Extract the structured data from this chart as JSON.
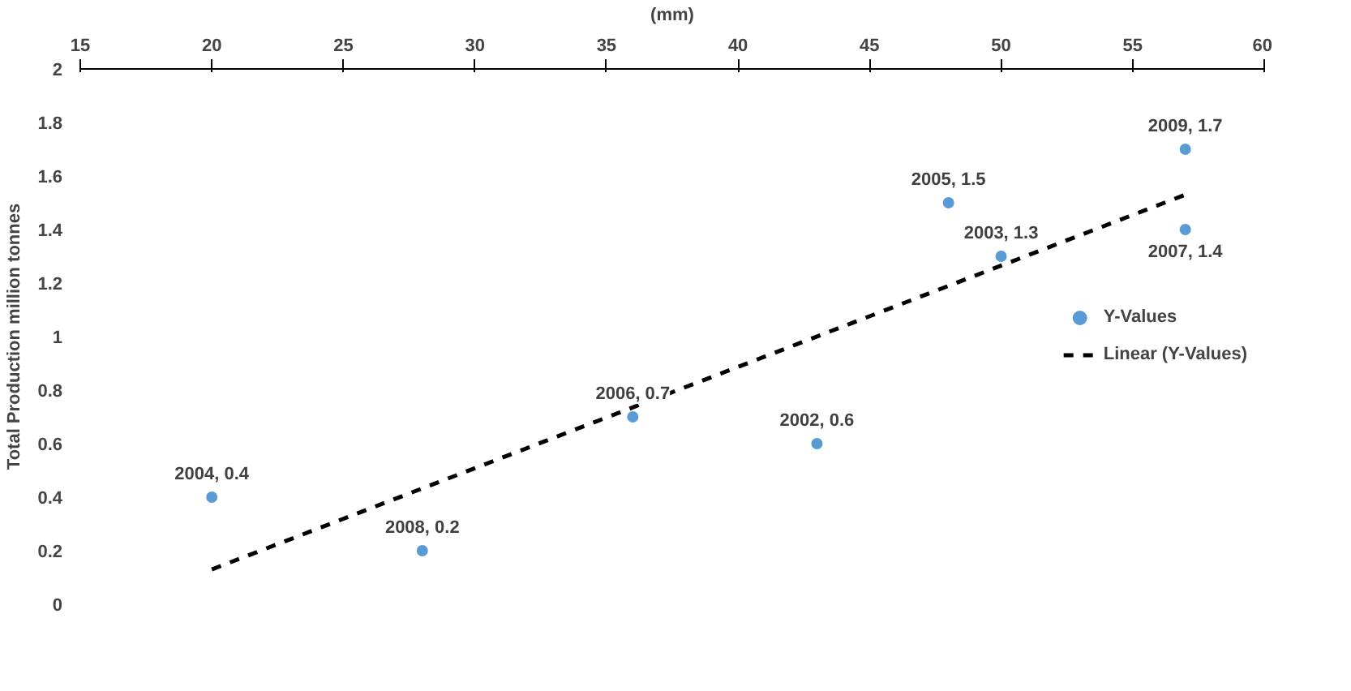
{
  "chart_data": {
    "type": "scatter",
    "xlabel": "(mm)",
    "ylabel": "Total Production million tonnes",
    "xlim": [
      15,
      60
    ],
    "xticks": [
      15,
      20,
      25,
      30,
      35,
      40,
      45,
      50,
      55,
      60
    ],
    "ylim": [
      0,
      2
    ],
    "yticks": [
      0,
      0.2,
      0.4,
      0.6,
      0.8,
      1,
      1.2,
      1.4,
      1.6,
      1.8,
      2
    ],
    "grid": false,
    "legend": "right",
    "series": [
      {
        "name": "Y-Values",
        "marker": "circle",
        "color": "#5b9bd5",
        "x": [
          20,
          28,
          36,
          43,
          48,
          50,
          57,
          57
        ],
        "values": [
          0.4,
          0.2,
          0.7,
          0.6,
          1.5,
          1.3,
          1.7,
          1.4
        ]
      },
      {
        "name": "Linear (Y-Values)",
        "type": "line",
        "color": "#000000",
        "line_style": "dashed",
        "x": [
          20,
          57
        ],
        "values": [
          0.13,
          1.53
        ]
      }
    ],
    "annotations": [
      {
        "text": "2004, 0.4",
        "x": 20,
        "y": 0.4
      },
      {
        "text": "2008, 0.2",
        "x": 28,
        "y": 0.2
      },
      {
        "text": "2006, 0.7",
        "x": 36,
        "y": 0.7
      },
      {
        "text": "2002, 0.6",
        "x": 43,
        "y": 0.6
      },
      {
        "text": "2005, 1.5",
        "x": 48,
        "y": 1.5
      },
      {
        "text": "2003, 1.3",
        "x": 50,
        "y": 1.3
      },
      {
        "text": "2009, 1.7",
        "x": 57,
        "y": 1.7
      },
      {
        "text": "2007, 1.4",
        "x": 57,
        "y": 1.4
      }
    ]
  }
}
